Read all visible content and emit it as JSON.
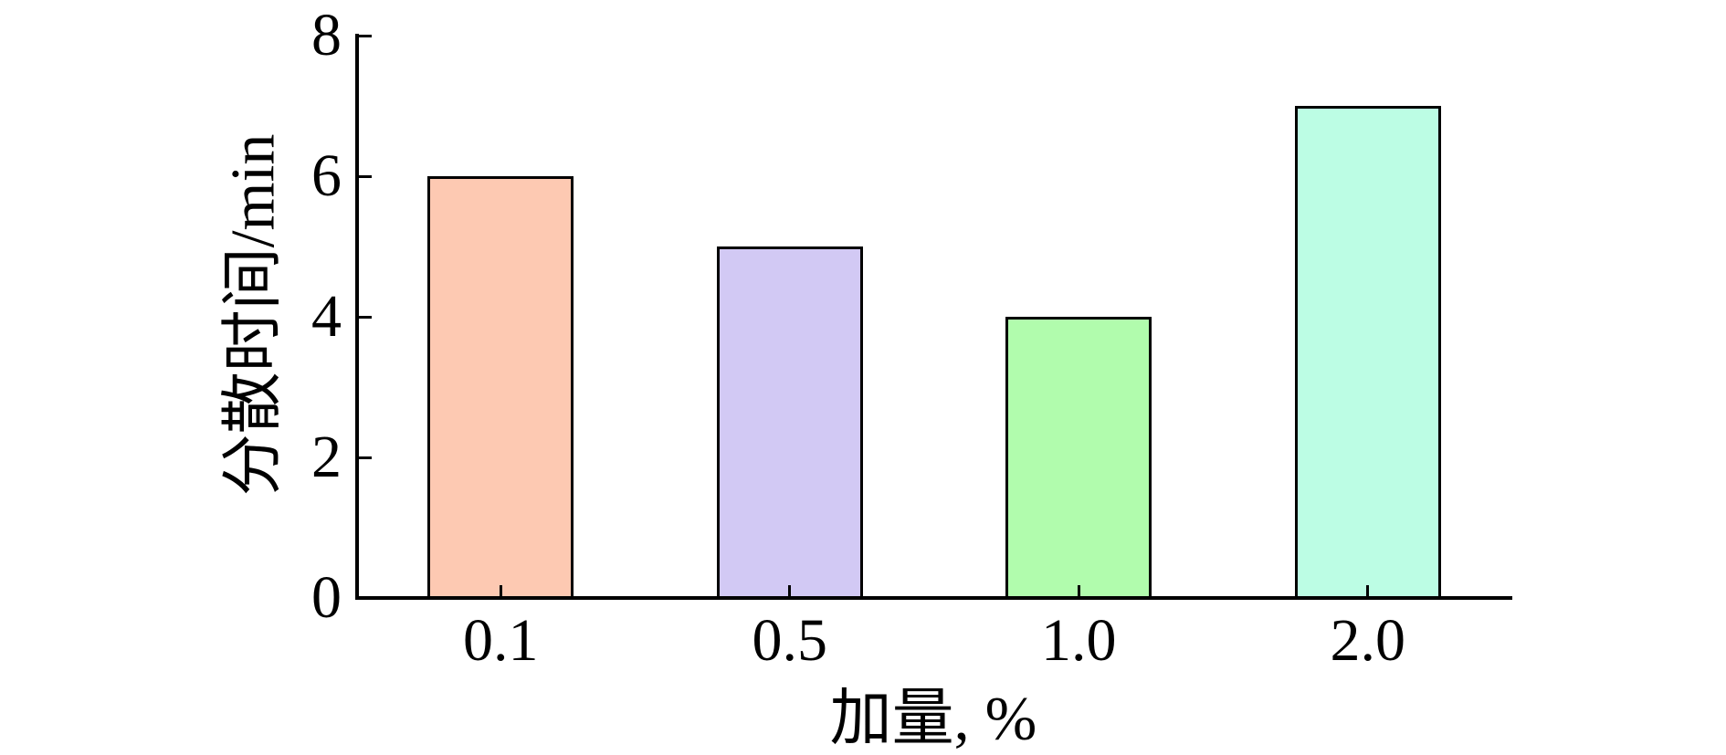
{
  "chart_data": {
    "type": "bar",
    "title": "",
    "categories": [
      "0.1",
      "0.5",
      "1.0",
      "2.0"
    ],
    "values": [
      6,
      5,
      4,
      7
    ],
    "bar_colors": [
      "#fdc9b2",
      "#d2c9f4",
      "#b1fcad",
      "#bcfde4"
    ],
    "bar_edge_color": "#000000",
    "xlabel": "加量, %",
    "ylabel": "分散时间/min",
    "ylim": [
      0,
      8
    ],
    "yticks": [
      0,
      2,
      4,
      6,
      8
    ],
    "ytick_labels": [
      "0",
      "2",
      "4",
      "6",
      "8"
    ],
    "xtick_labels": [
      "0.1",
      "0.5",
      "1.0",
      "2.0"
    ],
    "grid": false,
    "legend_position": "none",
    "bar_width_fraction": 0.5,
    "axis_color": "#000000",
    "background_color": "#ffffff",
    "tick_direction": "in"
  }
}
